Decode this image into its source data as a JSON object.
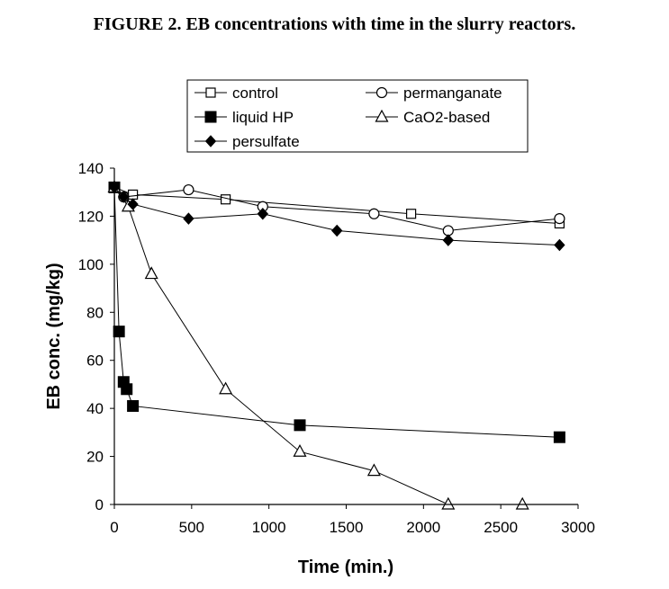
{
  "figure_title": "FIGURE 2. EB concentrations with time in the slurry reactors.",
  "chart_data": {
    "type": "scatter",
    "title": "FIGURE 2. EB concentrations with time in the slurry reactors.",
    "xlabel": "Time (min.)",
    "ylabel": "EB conc. (mg/kg)",
    "xlim": [
      0,
      3000
    ],
    "ylim": [
      0,
      140
    ],
    "xticks": [
      0,
      500,
      1000,
      1500,
      2000,
      2500,
      3000
    ],
    "yticks": [
      0,
      20,
      40,
      60,
      80,
      100,
      120,
      140
    ],
    "grid": false,
    "legend_position": "top",
    "series": [
      {
        "name": "control",
        "marker": "open-square",
        "connected": true,
        "x": [
          0,
          120,
          720,
          1920,
          2880
        ],
        "y": [
          132,
          129,
          127,
          121,
          117
        ]
      },
      {
        "name": "permanganate",
        "marker": "open-circle",
        "connected": true,
        "x": [
          0,
          60,
          480,
          960,
          1680,
          2160,
          2880
        ],
        "y": [
          132,
          128,
          131,
          124,
          121,
          114,
          119
        ]
      },
      {
        "name": "liquid HP",
        "marker": "filled-square",
        "connected": true,
        "x": [
          0,
          30,
          60,
          80,
          120,
          1200,
          2880
        ],
        "y": [
          132,
          72,
          51,
          48,
          41,
          33,
          28
        ]
      },
      {
        "name": "CaO2-based",
        "marker": "open-triangle",
        "connected": true,
        "x": [
          0,
          90,
          240,
          720,
          1200,
          1680,
          2160,
          2640
        ],
        "y": [
          132,
          124,
          96,
          48,
          22,
          14,
          0,
          0
        ]
      },
      {
        "name": "persulfate",
        "marker": "filled-diamond",
        "connected": true,
        "x": [
          0,
          60,
          120,
          480,
          960,
          1440,
          2160,
          2880
        ],
        "y": [
          132,
          128,
          125,
          119,
          121,
          114,
          110,
          108
        ]
      }
    ]
  }
}
